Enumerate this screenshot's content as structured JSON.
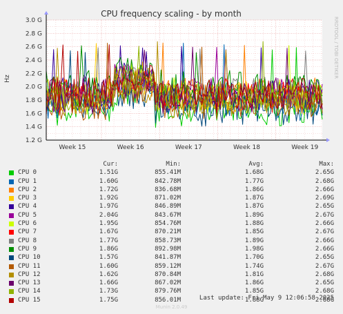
{
  "chart_data": {
    "type": "line",
    "title": "CPU frequency scaling - by month",
    "ylabel": "Hz",
    "side_label": "RRDTOOL / TOBI OETIKER",
    "ylim": [
      1.2,
      3.0
    ],
    "y_ticks": [
      {
        "value": 1.2,
        "label": "1.2 G"
      },
      {
        "value": 1.4,
        "label": "1.4 G"
      },
      {
        "value": 1.6,
        "label": "1.6 G"
      },
      {
        "value": 1.8,
        "label": "1.8 G"
      },
      {
        "value": 2.0,
        "label": "2.0 G"
      },
      {
        "value": 2.2,
        "label": "2.2 G"
      },
      {
        "value": 2.4,
        "label": "2.4 G"
      },
      {
        "value": 2.6,
        "label": "2.6 G"
      },
      {
        "value": 2.8,
        "label": "2.8 G"
      },
      {
        "value": 3.0,
        "label": "3.0 G"
      }
    ],
    "x_ticks": [
      {
        "value": 15,
        "label": "Week 15"
      },
      {
        "value": 16,
        "label": "Week 16"
      },
      {
        "value": 17,
        "label": "Week 17"
      },
      {
        "value": 18,
        "label": "Week 18"
      },
      {
        "value": 19,
        "label": "Week 19"
      }
    ],
    "xlim": [
      14.55,
      19.3
    ],
    "grid": true,
    "columns": {
      "cur": "Cur:",
      "min": "Min:",
      "avg": "Avg:",
      "max": "Max:"
    },
    "series": [
      {
        "name": "CPU 0",
        "color": "#00cc00",
        "cur": "1.51G",
        "min": "855.41M",
        "avg": "1.68G",
        "max": "2.65G"
      },
      {
        "name": "CPU 1",
        "color": "#0066b3",
        "cur": "1.60G",
        "min": "842.78M",
        "avg": "1.77G",
        "max": "2.68G"
      },
      {
        "name": "CPU 2",
        "color": "#ff8000",
        "cur": "1.72G",
        "min": "836.68M",
        "avg": "1.86G",
        "max": "2.66G"
      },
      {
        "name": "CPU 3",
        "color": "#ffcc00",
        "cur": "1.92G",
        "min": "871.02M",
        "avg": "1.87G",
        "max": "2.69G"
      },
      {
        "name": "CPU 4",
        "color": "#330099",
        "cur": "1.97G",
        "min": "846.89M",
        "avg": "1.87G",
        "max": "2.65G"
      },
      {
        "name": "CPU 5",
        "color": "#990099",
        "cur": "2.04G",
        "min": "843.67M",
        "avg": "1.89G",
        "max": "2.67G"
      },
      {
        "name": "CPU 6",
        "color": "#ccff00",
        "cur": "1.95G",
        "min": "854.76M",
        "avg": "1.88G",
        "max": "2.66G"
      },
      {
        "name": "CPU 7",
        "color": "#ff0000",
        "cur": "1.67G",
        "min": "870.21M",
        "avg": "1.85G",
        "max": "2.67G"
      },
      {
        "name": "CPU 8",
        "color": "#808080",
        "cur": "1.77G",
        "min": "858.73M",
        "avg": "1.89G",
        "max": "2.66G"
      },
      {
        "name": "CPU 9",
        "color": "#008f00",
        "cur": "1.86G",
        "min": "892.98M",
        "avg": "1.98G",
        "max": "2.66G"
      },
      {
        "name": "CPU 10",
        "color": "#00487d",
        "cur": "1.57G",
        "min": "841.87M",
        "avg": "1.70G",
        "max": "2.65G"
      },
      {
        "name": "CPU 11",
        "color": "#b35a00",
        "cur": "1.60G",
        "min": "859.12M",
        "avg": "1.74G",
        "max": "2.67G"
      },
      {
        "name": "CPU 12",
        "color": "#b38f00",
        "cur": "1.62G",
        "min": "870.84M",
        "avg": "1.81G",
        "max": "2.68G"
      },
      {
        "name": "CPU 13",
        "color": "#6b006b",
        "cur": "1.66G",
        "min": "867.02M",
        "avg": "1.86G",
        "max": "2.65G"
      },
      {
        "name": "CPU 14",
        "color": "#8fb300",
        "cur": "1.73G",
        "min": "879.76M",
        "avg": "1.85G",
        "max": "2.68G"
      },
      {
        "name": "CPU 15",
        "color": "#b30000",
        "cur": "1.75G",
        "min": "856.01M",
        "avg": "1.88G",
        "max": "2.68G"
      }
    ]
  },
  "last_update": "Last update: Fri May  9 12:06:58 2025",
  "footer": "Munin 2.0.49"
}
